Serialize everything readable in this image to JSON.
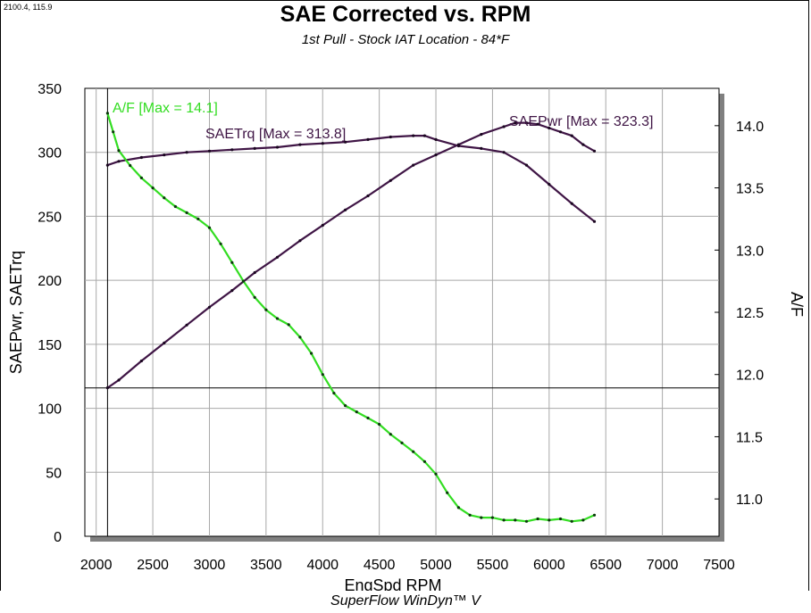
{
  "header": {
    "coordinate_readout": "2100.4, 115.9",
    "title": "SAE Corrected vs. RPM",
    "subtitle": "1st Pull - Stock IAT Location - 84*F"
  },
  "footer": {
    "software": "SuperFlow WinDyn™ V"
  },
  "colors": {
    "af": "#33dd22",
    "power": "#3f1545",
    "torque": "#3f1545",
    "grid": "#a8a8a8",
    "shadow": "#808080"
  },
  "chart_data": {
    "type": "line",
    "title": "SAE Corrected vs. RPM",
    "subtitle": "1st Pull - Stock IAT Location - 84*F",
    "xlabel": "EngSpd  RPM",
    "ylabel": "SAEPwr, SAETrq",
    "y2label": "A/F",
    "xlim": [
      1900,
      7500
    ],
    "ylim": [
      0,
      350
    ],
    "y2lim": [
      10.7,
      14.3
    ],
    "x_ticks": [
      "2000",
      "2500",
      "3000",
      "3500",
      "4000",
      "4500",
      "5000",
      "5500",
      "6000",
      "6500",
      "7000",
      "7500"
    ],
    "y_ticks": [
      "0",
      "50",
      "100",
      "150",
      "200",
      "250",
      "300",
      "350"
    ],
    "y2_ticks": [
      "11.0",
      "11.5",
      "12.0",
      "12.5",
      "13.0",
      "13.5",
      "14.0"
    ],
    "cursor": {
      "x": 2100.4,
      "y": 115.9
    },
    "series": [
      {
        "name": "SAEPwr",
        "label": "SAEPwr [Max = 323.3]",
        "axis": "left",
        "x": [
          2100,
          2200,
          2400,
          2600,
          2800,
          3000,
          3200,
          3400,
          3600,
          3800,
          4000,
          4200,
          4400,
          4600,
          4800,
          5000,
          5200,
          5400,
          5600,
          5700,
          5800,
          5900,
          6000,
          6100,
          6200,
          6300,
          6400
        ],
        "values": [
          116,
          122,
          137,
          151,
          165,
          179,
          192,
          206,
          218,
          231,
          243,
          255,
          266,
          278,
          290,
          298,
          306,
          314,
          320,
          323,
          323,
          322,
          319,
          316,
          313,
          306,
          301
        ]
      },
      {
        "name": "SAETrq",
        "label": "SAETrq [Max = 313.8]",
        "axis": "left",
        "x": [
          2100,
          2200,
          2400,
          2600,
          2800,
          3000,
          3200,
          3400,
          3600,
          3800,
          4000,
          4200,
          4400,
          4600,
          4800,
          4900,
          5000,
          5200,
          5400,
          5600,
          5800,
          6000,
          6200,
          6400
        ],
        "values": [
          290,
          293,
          296,
          298,
          300,
          301,
          302,
          303,
          304,
          306,
          307,
          308,
          310,
          312,
          313,
          313,
          310,
          305,
          303,
          300,
          290,
          275,
          260,
          246
        ]
      },
      {
        "name": "A/F",
        "label": "A/F   [Max = 14.1]",
        "axis": "right",
        "x": [
          2100,
          2150,
          2200,
          2300,
          2400,
          2500,
          2600,
          2700,
          2800,
          2900,
          3000,
          3100,
          3200,
          3300,
          3400,
          3500,
          3600,
          3700,
          3800,
          3900,
          4000,
          4100,
          4200,
          4300,
          4400,
          4500,
          4600,
          4700,
          4800,
          4900,
          5000,
          5100,
          5200,
          5300,
          5400,
          5500,
          5600,
          5700,
          5800,
          5900,
          6000,
          6100,
          6200,
          6300,
          6400
        ],
        "values": [
          14.1,
          13.95,
          13.8,
          13.68,
          13.58,
          13.5,
          13.42,
          13.35,
          13.3,
          13.25,
          13.18,
          13.05,
          12.9,
          12.75,
          12.62,
          12.52,
          12.45,
          12.4,
          12.3,
          12.17,
          12.0,
          11.85,
          11.75,
          11.7,
          11.65,
          11.6,
          11.52,
          11.45,
          11.38,
          11.3,
          11.2,
          11.05,
          10.93,
          10.87,
          10.85,
          10.85,
          10.83,
          10.83,
          10.82,
          10.84,
          10.83,
          10.84,
          10.82,
          10.83,
          10.87
        ]
      }
    ]
  }
}
